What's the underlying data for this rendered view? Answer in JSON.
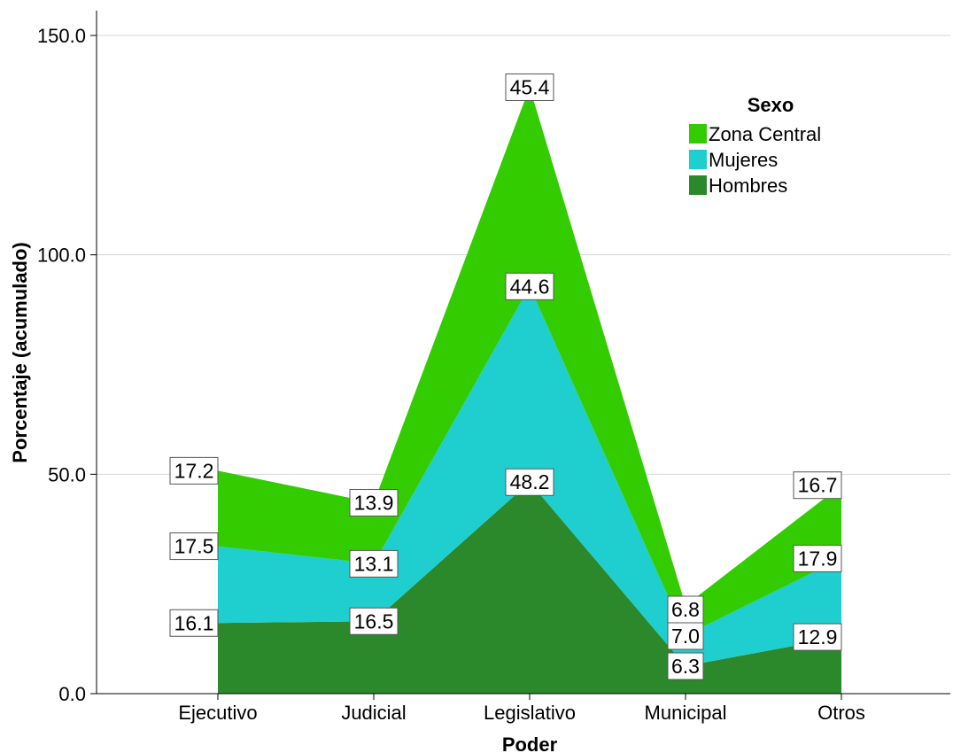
{
  "chart_data": {
    "type": "area",
    "stacked": true,
    "xlabel": "Poder",
    "ylabel": "Porcentaje (acumulado)",
    "categories": [
      "Ejecutivo",
      "Judicial",
      "Legislativo",
      "Municipal",
      "Otros"
    ],
    "ylim": [
      0,
      150
    ],
    "yticks": [
      0,
      50,
      100,
      150
    ],
    "ytick_labels": [
      "0.0",
      "50.0",
      "100.0",
      "150.0"
    ],
    "grid": "horizontal",
    "legend": {
      "title": "Sexo",
      "position": "top-right",
      "entries": [
        "Zona Central",
        "Mujeres",
        "Hombres"
      ]
    },
    "series": [
      {
        "name": "Hombres",
        "color": "#2b882b",
        "values": [
          16.1,
          16.5,
          48.2,
          6.3,
          12.9
        ],
        "labels": [
          "16.1",
          "16.5",
          "48.2",
          "6.3",
          "12.9"
        ]
      },
      {
        "name": "Mujeres",
        "color": "#1fcece",
        "values": [
          17.5,
          13.1,
          44.6,
          7.0,
          17.9
        ],
        "labels": [
          "17.5",
          "13.1",
          "44.6",
          "7.0",
          "17.9"
        ]
      },
      {
        "name": "Zona Central",
        "color": "#33cc00",
        "values": [
          17.2,
          13.9,
          45.4,
          6.8,
          16.7
        ],
        "labels": [
          "17.2",
          "13.9",
          "45.4",
          "6.8",
          "16.7"
        ]
      }
    ]
  }
}
